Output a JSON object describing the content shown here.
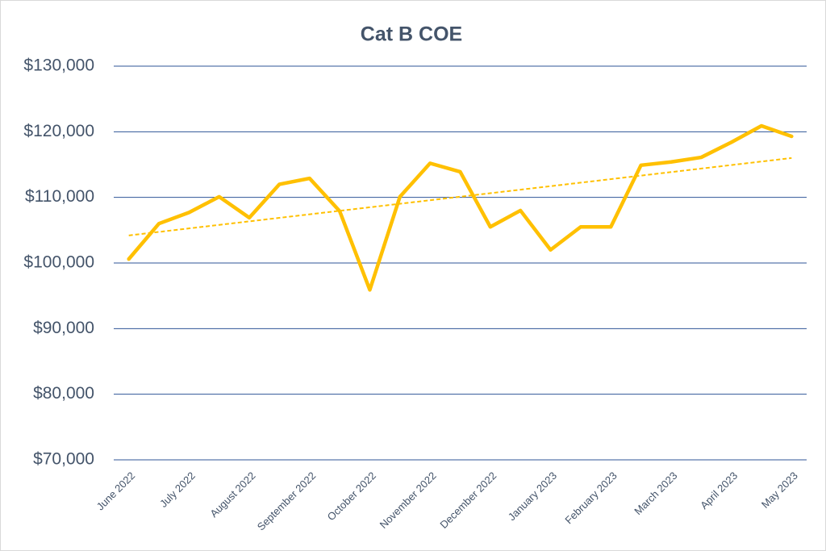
{
  "chart_data": {
    "type": "line",
    "title": "Cat B COE",
    "categories": [
      "June 2022",
      null,
      "July 2022",
      null,
      "August 2022",
      null,
      "September 2022",
      null,
      "October 2022",
      null,
      "November 2022",
      null,
      "December 2022",
      null,
      "January 2023",
      null,
      "February 2023",
      null,
      "March 2023",
      null,
      "April 2023",
      null,
      "May 2023"
    ],
    "series": [
      {
        "color": "#ffc000",
        "values": [
          100600,
          106000,
          107700,
          110100,
          106900,
          112000,
          112900,
          107900,
          95900,
          110100,
          115200,
          113900,
          105500,
          108000,
          102000,
          105500,
          105500,
          114900,
          115400,
          116100,
          118400,
          120900,
          119300
        ]
      }
    ],
    "trendline": {
      "color": "#ffc000",
      "values": [
        104200,
        116000
      ]
    },
    "ylim": [
      70000,
      130000
    ],
    "yticks": [
      {
        "value": 70000,
        "label": "$70,000"
      },
      {
        "value": 80000,
        "label": "$80,000"
      },
      {
        "value": 90000,
        "label": "$90,000"
      },
      {
        "value": 100000,
        "label": "$100,000"
      },
      {
        "value": 110000,
        "label": "$110,000"
      },
      {
        "value": 120000,
        "label": "$120,000"
      },
      {
        "value": 130000,
        "label": "$130,000"
      }
    ],
    "grid": true
  }
}
